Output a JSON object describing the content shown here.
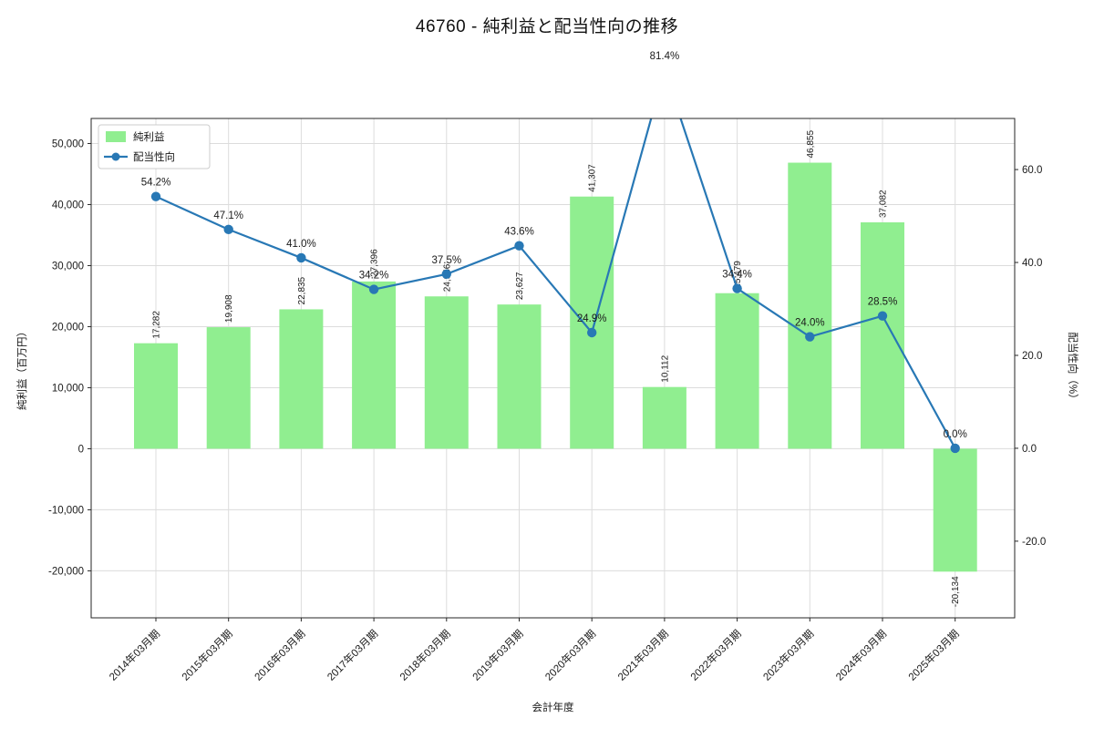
{
  "title": "46760 - 純利益と配当性向の推移",
  "chart_data": {
    "type": "bar+line",
    "xlabel": "会計年度",
    "ylabel_left": "純利益（百万円）",
    "ylabel_right": "配当性向（%）",
    "categories": [
      "2014年03月期",
      "2015年03月期",
      "2016年03月期",
      "2017年03月期",
      "2018年03月期",
      "2019年03月期",
      "2020年03月期",
      "2021年03月期",
      "2022年03月期",
      "2023年03月期",
      "2024年03月期",
      "2025年03月期"
    ],
    "series": [
      {
        "name": "純利益",
        "type": "bar",
        "axis": "left",
        "color": "#90ee90",
        "values": [
          17282,
          19908,
          22835,
          27396,
          24956,
          23627,
          41307,
          10112,
          25479,
          46855,
          37082,
          -20134
        ],
        "labels": [
          "17,282",
          "19,908",
          "22,835",
          "27,396",
          "24,956",
          "23,627",
          "41,307",
          "10,112",
          "25,479",
          "46,855",
          "37,082",
          "-20,134"
        ]
      },
      {
        "name": "配当性向",
        "type": "line",
        "axis": "right",
        "color": "#2878b5",
        "values": [
          54.2,
          47.1,
          41.0,
          34.2,
          37.5,
          43.6,
          24.9,
          81.4,
          34.4,
          24.0,
          28.5,
          0.0
        ],
        "labels": [
          "54.2%",
          "47.1%",
          "41.0%",
          "34.2%",
          "37.5%",
          "43.6%",
          "24.9%",
          "81.4%",
          "34.4%",
          "24.0%",
          "28.5%",
          "0.0%"
        ]
      }
    ],
    "left_axis": {
      "ticks": [
        50000,
        40000,
        30000,
        20000,
        10000,
        0,
        -10000,
        -20000
      ],
      "tick_labels": [
        "50,000",
        "40,000",
        "30,000",
        "20,000",
        "10,000",
        "0",
        "-10,000",
        "-20,000"
      ],
      "ylim": [
        -27700,
        54100
      ]
    },
    "right_axis": {
      "ticks": [
        60,
        40,
        20,
        0,
        -20
      ],
      "tick_labels": [
        "60.0",
        "40.0",
        "20.0",
        "0.0",
        "-20.0"
      ],
      "ylim": [
        -36.5,
        71.0
      ]
    },
    "legend": [
      "純利益",
      "配当性向"
    ],
    "grid": true,
    "colors": {
      "bar": "#90ee90",
      "line": "#2878b5",
      "grid": "#dcdcdc",
      "spine": "#262626"
    }
  }
}
